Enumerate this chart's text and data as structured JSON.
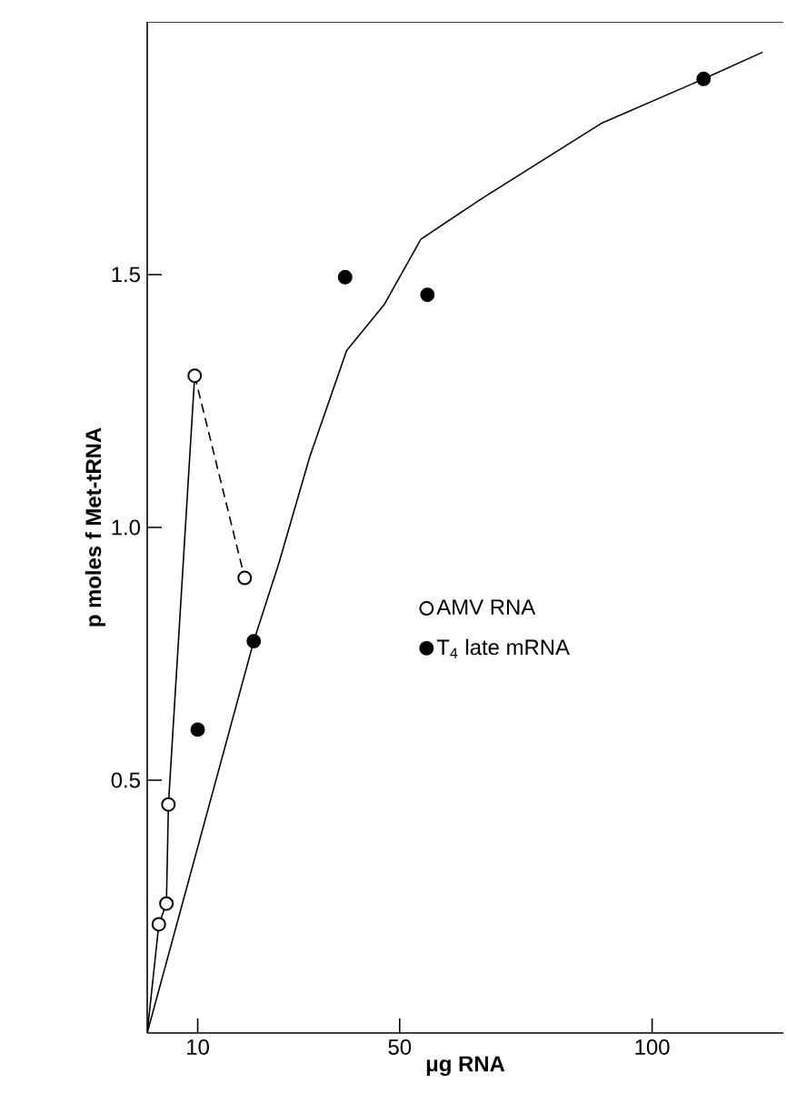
{
  "chart_data": {
    "type": "scatter",
    "xlabel": "μg RNA",
    "ylabel": "p moles f Met-tRNA",
    "xlim": [
      0,
      126
    ],
    "xticks": [
      10,
      50,
      100
    ],
    "ylim": [
      0,
      2.0
    ],
    "yticks": [
      0.5,
      {
        "value": 1.0,
        "label": "1.0"
      },
      1.5
    ],
    "legend": "right",
    "grid": false,
    "series": [
      {
        "name": "AMV RNA",
        "type": "scatter",
        "marker": "circle",
        "color": "#ffffff",
        "x": [
          2.3,
          3.8,
          4.2,
          9.4,
          19.3
        ],
        "values": [
          0.215,
          0.256,
          0.452,
          1.3,
          0.9
        ]
      },
      {
        "name": "T$_{4}$ late mRNA",
        "type": "scatter",
        "marker": "circle",
        "color": "#000000",
        "x": [
          10,
          21.1,
          39.2,
          55.5,
          110.2
        ],
        "values": [
          0.6,
          0.775,
          1.495,
          1.46,
          1.887
        ]
      },
      {
        "type": "line",
        "marker": "none",
        "line_style": "solid",
        "color": "#000000",
        "x": [
          0,
          2.3,
          3.8,
          4.2,
          9.4
        ],
        "values": [
          0,
          0.215,
          0.256,
          0.452,
          1.3
        ]
      },
      {
        "type": "line",
        "marker": "none",
        "line_style": "dashed",
        "color": "#000000",
        "x": [
          9.4,
          19.3
        ],
        "values": [
          1.3,
          0.9
        ]
      },
      {
        "type": "line",
        "marker": "none",
        "line_style": "solid",
        "color": "#000000",
        "x": [
          0,
          21.1,
          26.1,
          32.2,
          39.5,
          46.9,
          54.2,
          66.2,
          90.1,
          110.2,
          121.9
        ],
        "values": [
          0,
          0.775,
          0.93,
          1.14,
          1.35,
          1.44,
          1.57,
          1.65,
          1.8,
          1.887,
          1.94
        ]
      }
    ]
  }
}
